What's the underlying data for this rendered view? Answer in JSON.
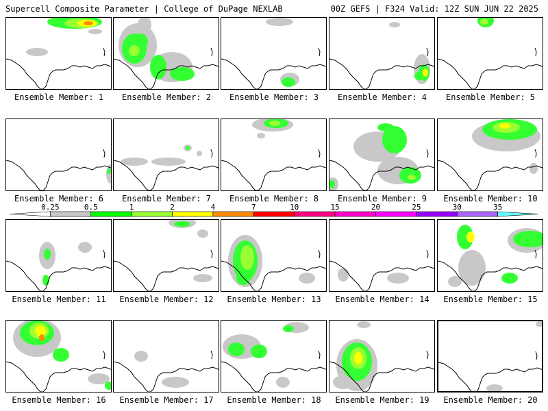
{
  "header": {
    "title_left": "Supercell Composite Parameter | College of DuPage NEXLAB",
    "title_right": "00Z GEFS | F324 Valid: 12Z SUN JUN 22 2025"
  },
  "panels": [
    {
      "label": "Ensemble Member: 1"
    },
    {
      "label": "Ensemble Member: 2"
    },
    {
      "label": "Ensemble Member: 3"
    },
    {
      "label": "Ensemble Member: 4"
    },
    {
      "label": "Ensemble Member: 5"
    },
    {
      "label": "Ensemble Member: 6"
    },
    {
      "label": "Ensemble Member: 7"
    },
    {
      "label": "Ensemble Member: 8"
    },
    {
      "label": "Ensemble Member: 9"
    },
    {
      "label": "Ensemble Member: 10"
    },
    {
      "label": "Ensemble Member: 11"
    },
    {
      "label": "Ensemble Member: 12"
    },
    {
      "label": "Ensemble Member: 13"
    },
    {
      "label": "Ensemble Member: 14"
    },
    {
      "label": "Ensemble Member: 15"
    },
    {
      "label": "Ensemble Member: 16"
    },
    {
      "label": "Ensemble Member: 17"
    },
    {
      "label": "Ensemble Member: 18"
    },
    {
      "label": "Ensemble Member: 19"
    },
    {
      "label": "Ensemble Member: 20"
    }
  ],
  "colorbar": {
    "labels": [
      "0.25",
      "0.5",
      "1",
      "2",
      "4",
      "7",
      "10",
      "15",
      "20",
      "25",
      "30",
      "35"
    ],
    "colors": [
      "#ffffff",
      "#c8c8c8",
      "#00ff00",
      "#99ff33",
      "#ffff00",
      "#ff8c00",
      "#ff0000",
      "#ff0080",
      "#ff00cc",
      "#ff00ff",
      "#9900ff",
      "#aa66ff",
      "#66ffff"
    ]
  }
}
